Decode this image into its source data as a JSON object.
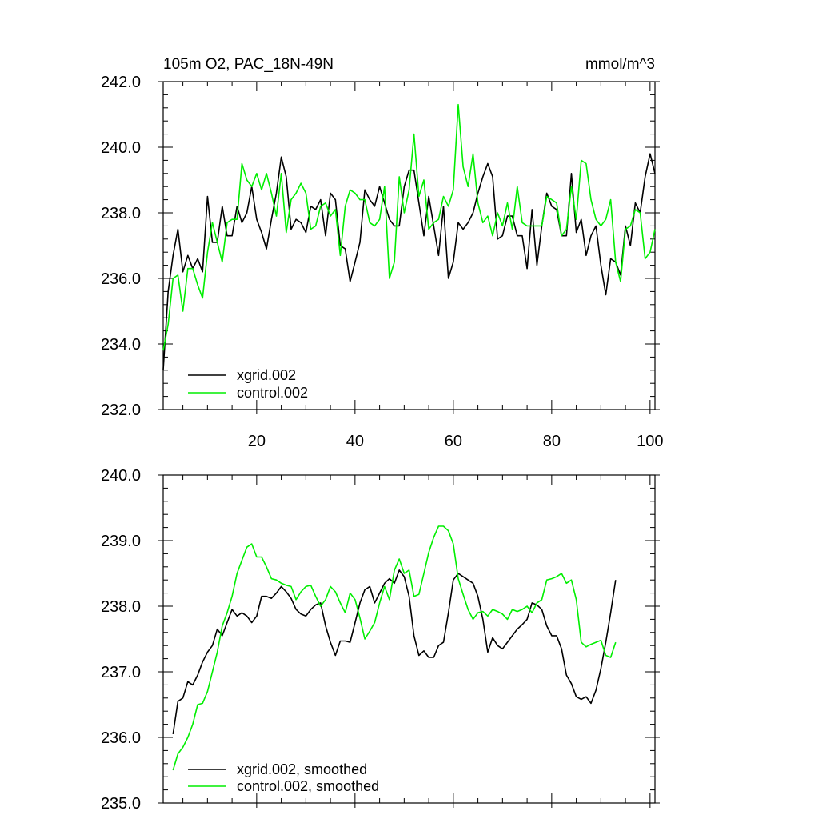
{
  "chart_data": [
    {
      "type": "line",
      "title": "105m O2, PAC_18N-49N",
      "units": "mmol/m^3",
      "xlim": [
        1,
        101
      ],
      "ylim": [
        232,
        242
      ],
      "xticks": [
        20,
        40,
        60,
        80,
        100
      ],
      "yticks": [
        232.0,
        234.0,
        236.0,
        238.0,
        240.0,
        242.0
      ],
      "ytick_labels": [
        "232.0",
        "234.0",
        "236.0",
        "238.0",
        "240.0",
        "242.0"
      ],
      "xtick_labels": [
        "20",
        "40",
        "60",
        "80",
        "100"
      ],
      "legend_position": "bottom-left",
      "series": [
        {
          "name": "xgrid.002",
          "color": "#000000",
          "x_start": 1,
          "values": [
            233.2,
            235.6,
            236.7,
            237.5,
            236.2,
            236.7,
            236.3,
            236.6,
            236.2,
            238.5,
            237.1,
            237.1,
            238.2,
            237.3,
            237.3,
            238.2,
            237.7,
            238.0,
            238.8,
            237.8,
            237.4,
            236.9,
            237.8,
            238.6,
            239.7,
            239.1,
            237.5,
            237.8,
            237.7,
            237.4,
            238.2,
            238.1,
            238.4,
            237.3,
            238.6,
            238.4,
            237.0,
            236.9,
            235.9,
            236.5,
            237.1,
            238.7,
            238.4,
            238.2,
            238.8,
            238.3,
            237.8,
            237.6,
            237.6,
            238.8,
            239.3,
            239.3,
            238.3,
            237.3,
            238.5,
            237.6,
            236.7,
            238.2,
            236.0,
            236.5,
            237.7,
            237.5,
            237.7,
            238.0,
            238.6,
            239.1,
            239.5,
            239.1,
            237.2,
            237.3,
            237.9,
            237.9,
            237.3,
            237.3,
            236.3,
            238.1,
            236.4,
            237.6,
            238.6,
            238.2,
            238.1,
            237.3,
            237.3,
            239.2,
            237.4,
            237.8,
            236.7,
            237.3,
            237.6,
            236.4,
            235.5,
            236.6,
            236.5,
            236.1,
            237.6,
            237.0,
            238.3,
            238.0,
            239.1,
            239.8,
            239.2
          ]
        },
        {
          "name": "control.002",
          "color": "#00ee00",
          "x_start": 1,
          "values": [
            233.8,
            234.6,
            236.0,
            236.1,
            235.0,
            236.3,
            236.3,
            235.8,
            235.4,
            236.8,
            237.7,
            237.1,
            236.5,
            237.7,
            237.8,
            237.8,
            239.5,
            239.0,
            238.8,
            239.2,
            238.7,
            239.2,
            238.6,
            237.9,
            239.2,
            237.4,
            238.4,
            238.6,
            238.9,
            238.6,
            237.5,
            237.6,
            238.2,
            238.3,
            237.9,
            238.1,
            236.7,
            238.2,
            238.7,
            238.6,
            238.4,
            238.4,
            237.7,
            237.6,
            237.8,
            238.8,
            236.0,
            236.5,
            239.1,
            238.0,
            238.7,
            240.4,
            238.5,
            239.0,
            237.5,
            237.7,
            237.8,
            238.5,
            238.2,
            238.7,
            241.3,
            239.4,
            238.8,
            239.8,
            238.3,
            237.7,
            237.9,
            237.3,
            238.0,
            237.6,
            238.3,
            237.5,
            238.8,
            237.7,
            237.6,
            237.6,
            237.6,
            237.6,
            238.5,
            238.4,
            238.3,
            237.3,
            237.5,
            238.8,
            237.8,
            239.6,
            239.5,
            238.4,
            237.8,
            237.6,
            237.8,
            238.4,
            236.5,
            235.9,
            237.5,
            237.6,
            238.1,
            238.0,
            236.6,
            236.8,
            237.5
          ]
        }
      ]
    },
    {
      "type": "line",
      "title": "",
      "xlim": [
        1,
        101
      ],
      "ylim": [
        235,
        240
      ],
      "yticks": [
        235.0,
        236.0,
        237.0,
        238.0,
        239.0,
        240.0
      ],
      "ytick_labels": [
        "235.0",
        "236.0",
        "237.0",
        "238.0",
        "239.0",
        "240.0"
      ],
      "xticks": [
        20,
        40,
        60,
        80,
        100
      ],
      "legend_position": "bottom-left",
      "series": [
        {
          "name": "xgrid.002, smoothed",
          "color": "#000000",
          "x_start": 3,
          "values": [
            236.05,
            236.55,
            236.6,
            236.85,
            236.8,
            236.95,
            237.15,
            237.3,
            237.4,
            237.65,
            237.55,
            237.75,
            237.95,
            237.85,
            237.9,
            237.85,
            237.75,
            237.85,
            238.15,
            238.15,
            238.12,
            238.2,
            238.3,
            238.22,
            238.12,
            237.95,
            237.88,
            237.85,
            237.95,
            238.02,
            238.05,
            237.7,
            237.45,
            237.25,
            237.47,
            237.47,
            237.45,
            237.75,
            238.05,
            238.25,
            238.3,
            238.05,
            238.2,
            238.35,
            238.42,
            238.35,
            238.55,
            238.45,
            238.15,
            237.55,
            237.25,
            237.32,
            237.22,
            237.22,
            237.4,
            237.45,
            237.9,
            238.4,
            238.5,
            238.45,
            238.4,
            238.35,
            238.15,
            237.8,
            237.3,
            237.52,
            237.4,
            237.35,
            237.45,
            237.55,
            237.65,
            237.72,
            237.8,
            238.05,
            238.02,
            237.95,
            237.7,
            237.55,
            237.55,
            237.35,
            236.95,
            236.82,
            236.62,
            236.58,
            236.62,
            236.52,
            236.72,
            237.05,
            237.45,
            237.9,
            238.4
          ]
        },
        {
          "name": "control.002, smoothed",
          "color": "#00ee00",
          "x_start": 3,
          "values": [
            235.5,
            235.75,
            235.85,
            236.0,
            236.2,
            236.5,
            236.52,
            236.7,
            237.0,
            237.3,
            237.7,
            237.9,
            238.15,
            238.5,
            238.7,
            238.9,
            238.95,
            238.75,
            238.75,
            238.6,
            238.42,
            238.4,
            238.35,
            238.32,
            238.3,
            238.1,
            238.22,
            238.3,
            238.32,
            238.15,
            238.0,
            238.1,
            238.3,
            238.22,
            238.05,
            237.9,
            238.2,
            238.1,
            237.82,
            237.5,
            237.62,
            237.75,
            238.05,
            238.3,
            238.1,
            238.55,
            238.72,
            238.5,
            238.55,
            238.15,
            238.18,
            238.5,
            238.82,
            239.05,
            239.22,
            239.22,
            239.15,
            238.95,
            238.42,
            238.18,
            237.95,
            237.8,
            237.9,
            237.92,
            237.85,
            237.95,
            237.92,
            237.88,
            237.8,
            237.95,
            237.92,
            237.95,
            238.0,
            237.9,
            238.05,
            238.1,
            238.4,
            238.42,
            238.45,
            238.5,
            238.35,
            238.4,
            238.1,
            237.45,
            237.38,
            237.42,
            237.45,
            237.48,
            237.25,
            237.22,
            237.45
          ]
        }
      ]
    }
  ]
}
